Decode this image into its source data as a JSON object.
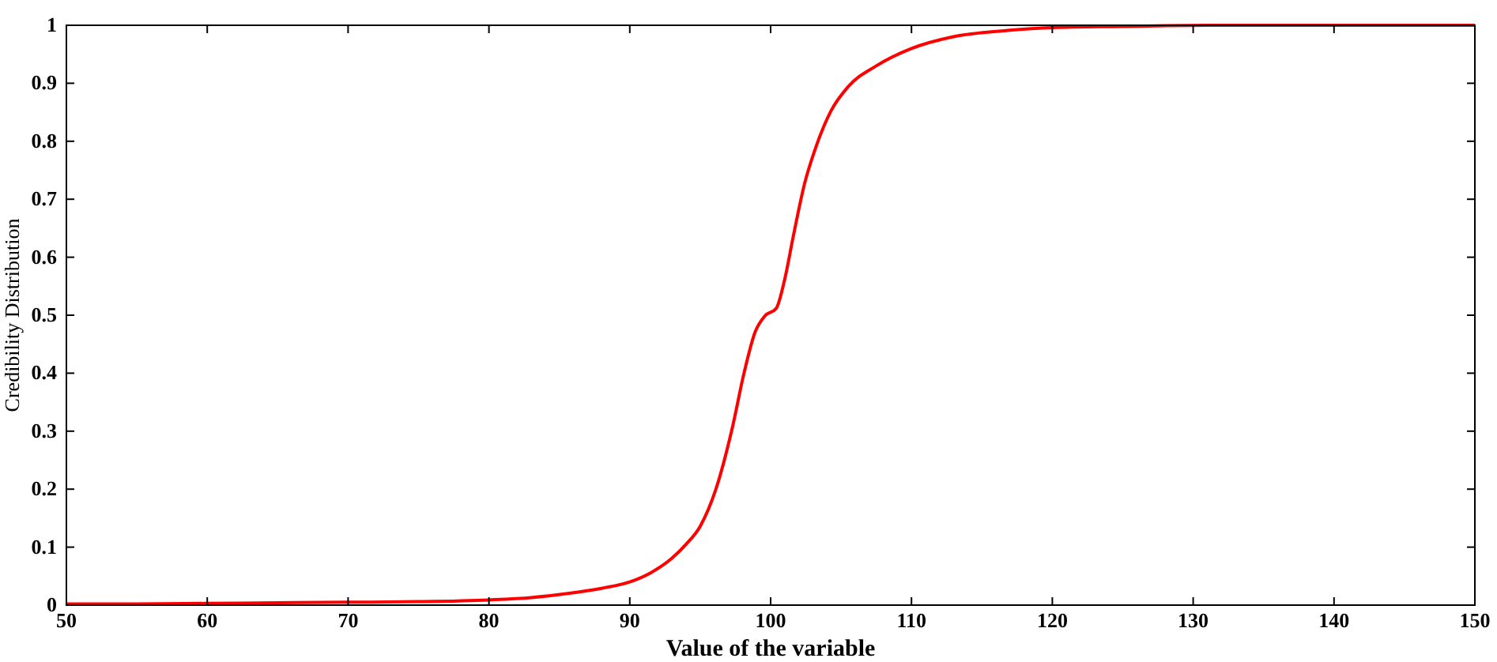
{
  "chart_data": {
    "type": "line",
    "xlabel": "Value of the variable",
    "ylabel": "Credibility Distribution",
    "series": [
      {
        "color": "#ff0000",
        "x": [
          50,
          55,
          60,
          65,
          70,
          75,
          80,
          83,
          85.6,
          88,
          90,
          91.5,
          93,
          94,
          95,
          96.1,
          97.3,
          98.1,
          98.9,
          99.6,
          100.4,
          101,
          101.6,
          102.4,
          103.2,
          104.3,
          105.5,
          107.5,
          110,
          112.9,
          116.8,
          120,
          125,
          131,
          140,
          150
        ],
        "values": [
          0.002,
          0.002,
          0.003,
          0.004,
          0.005,
          0.006,
          0.009,
          0.013,
          0.02,
          0.029,
          0.04,
          0.056,
          0.081,
          0.105,
          0.136,
          0.199,
          0.308,
          0.399,
          0.471,
          0.499,
          0.512,
          0.562,
          0.635,
          0.726,
          0.789,
          0.853,
          0.894,
          0.93,
          0.96,
          0.98,
          0.991,
          0.996,
          0.998,
          1,
          1,
          1
        ]
      }
    ],
    "xlim": [
      50,
      150
    ],
    "xticks": [
      50,
      60,
      70,
      80,
      90,
      100,
      110,
      120,
      130,
      140,
      150
    ],
    "ylim": [
      0,
      1
    ],
    "yticks": [
      0,
      0.1,
      0.2,
      0.3,
      0.4,
      0.5,
      0.6,
      0.7,
      0.8,
      0.9,
      1
    ],
    "grid": false,
    "marker": "none",
    "line_style": "solid"
  }
}
